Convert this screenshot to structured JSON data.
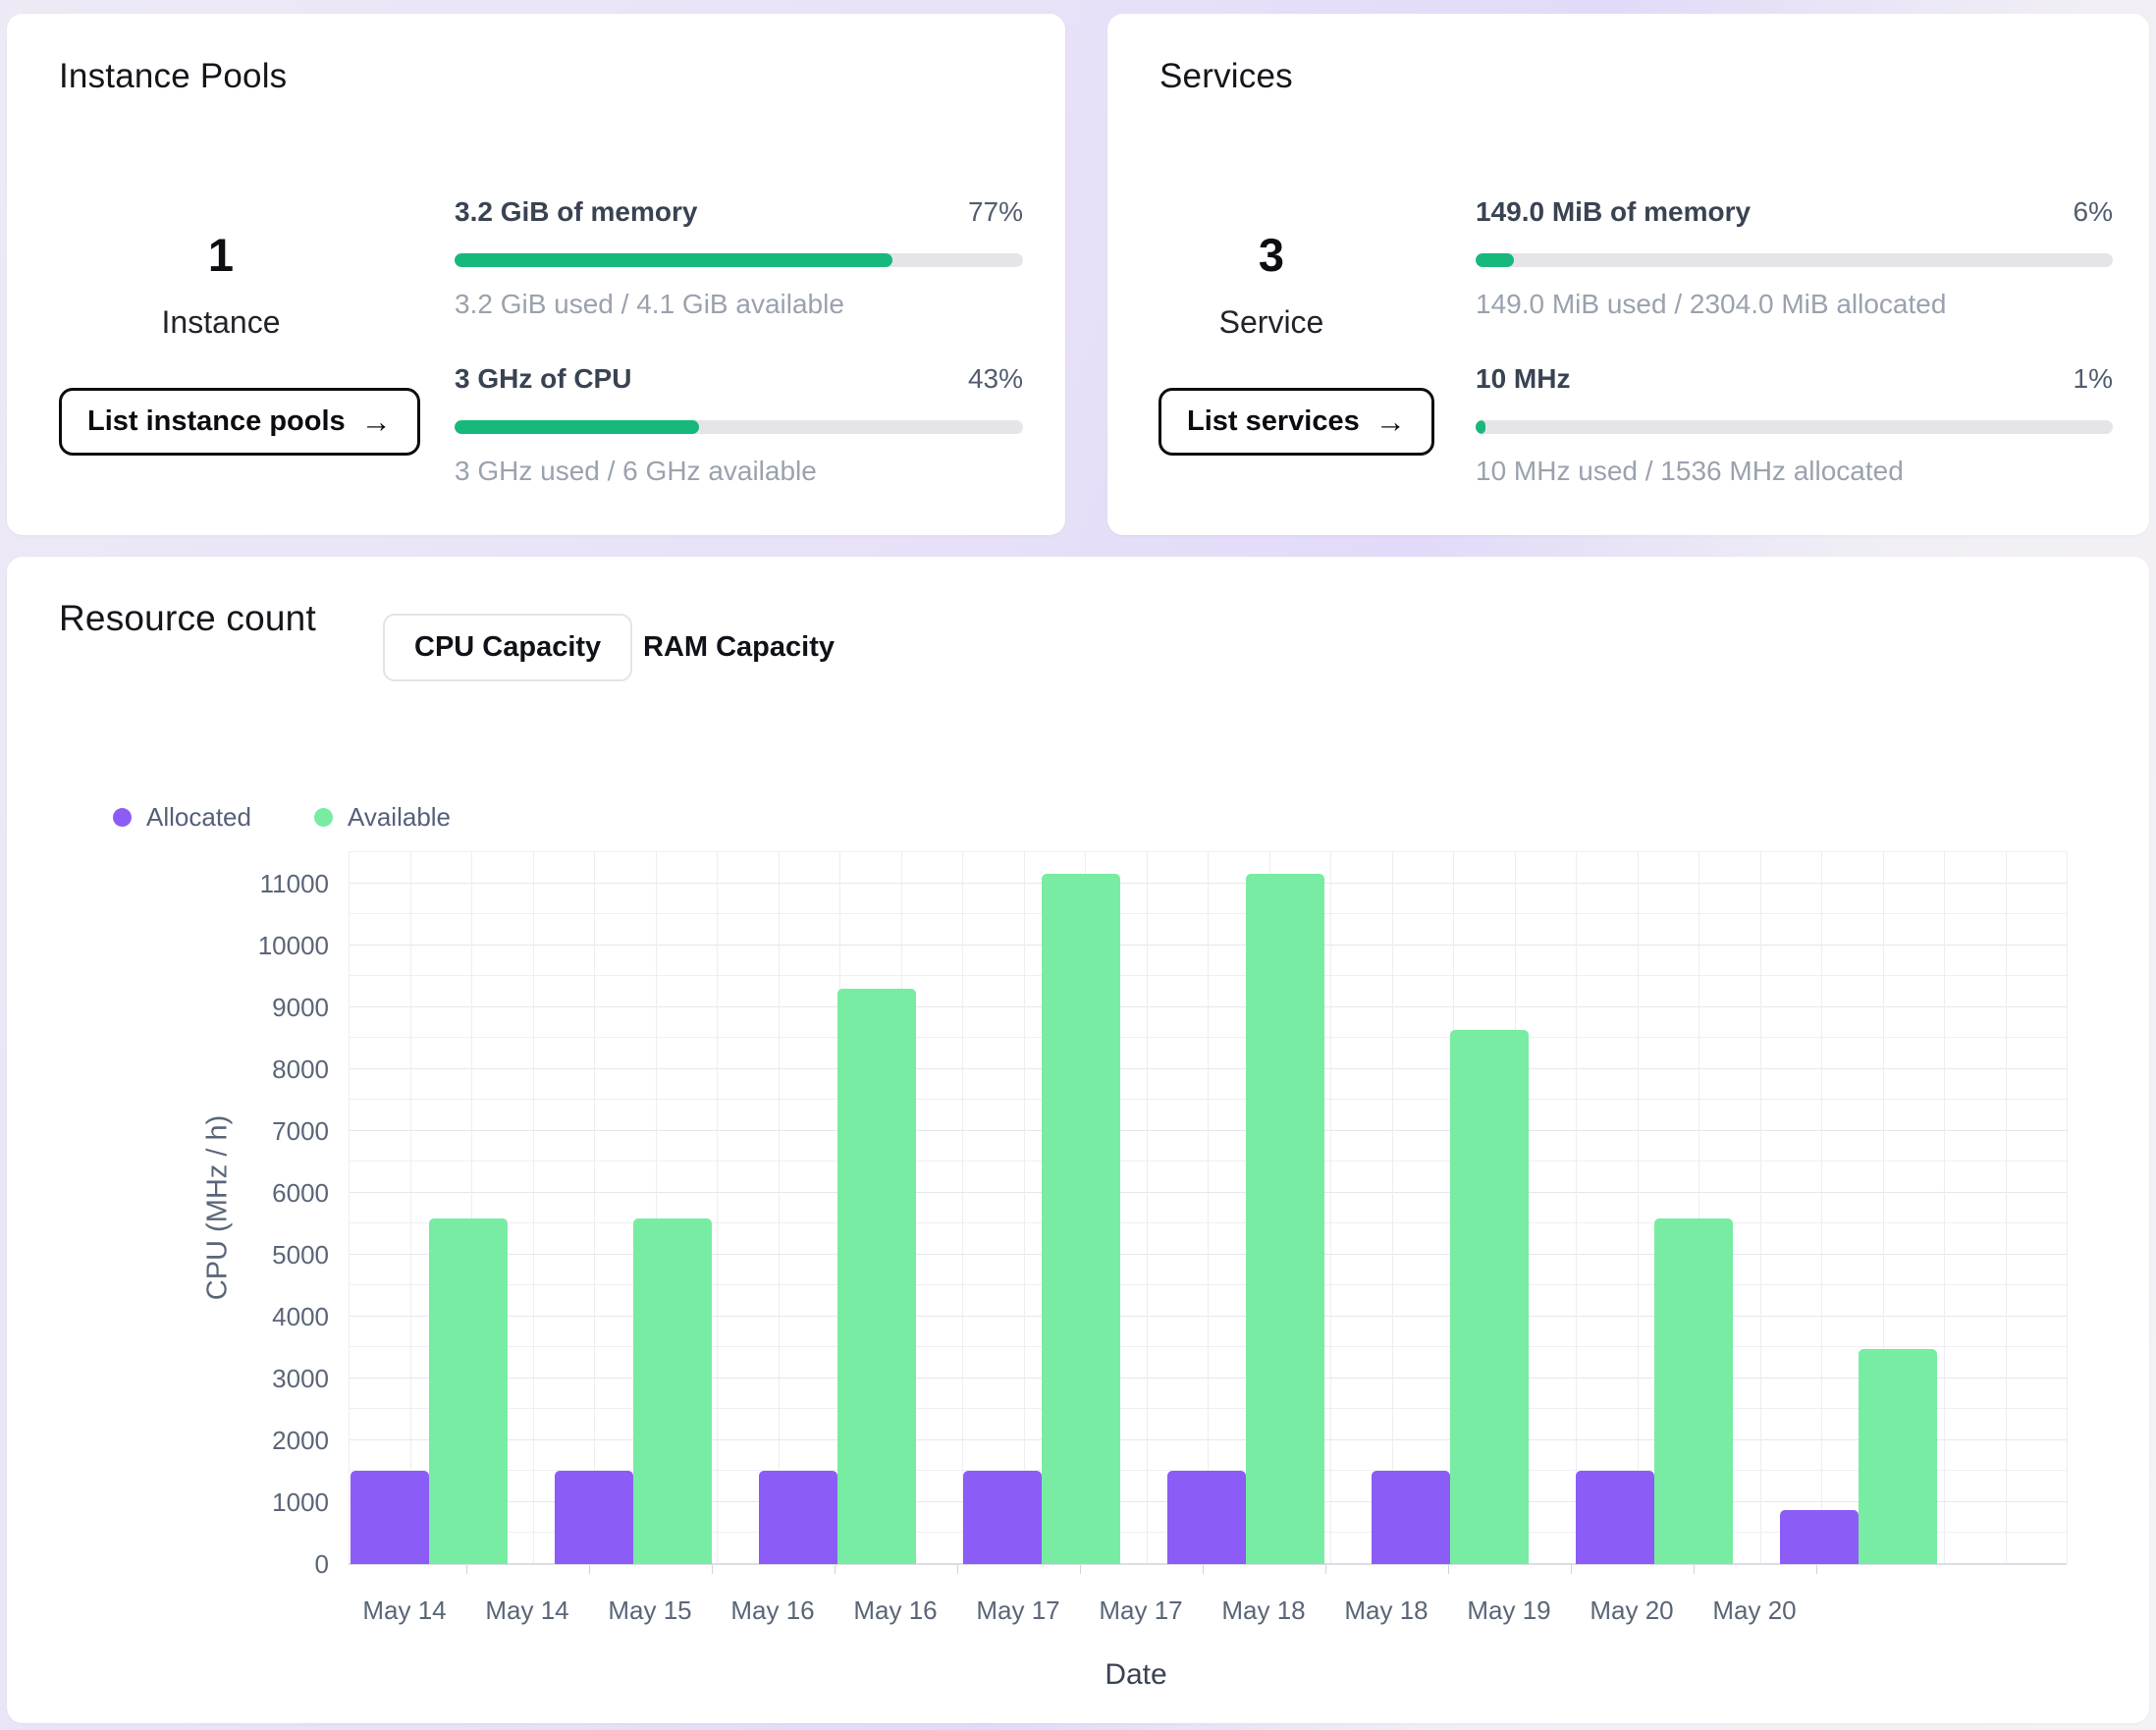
{
  "cards": {
    "instance_pools": {
      "title": "Instance Pools",
      "count": "1",
      "count_label": "Instance",
      "button_label": "List instance pools",
      "button_arrow": "→",
      "metrics": [
        {
          "label": "3.2 GiB of memory",
          "percent": "77%",
          "percent_value": 77,
          "detail": "3.2 GiB used / 4.1 GiB available"
        },
        {
          "label": "3 GHz of CPU",
          "percent": "43%",
          "percent_value": 43,
          "detail": "3 GHz used / 6 GHz available"
        }
      ]
    },
    "services": {
      "title": "Services",
      "count": "3",
      "count_label": "Service",
      "button_label": "List services",
      "button_arrow": "→",
      "metrics": [
        {
          "label": "149.0 MiB of memory",
          "percent": "6%",
          "percent_value": 6,
          "detail": "149.0 MiB used / 2304.0 MiB allocated"
        },
        {
          "label": "10 MHz",
          "percent": "1%",
          "percent_value": 1,
          "detail": "10 MHz used / 1536 MHz allocated"
        }
      ]
    }
  },
  "resource_section": {
    "title": "Resource count",
    "tabs": [
      {
        "label": "CPU Capacity",
        "selected": true
      },
      {
        "label": "RAM Capacity",
        "selected": false
      }
    ]
  },
  "colors": {
    "progress_green": "#17b87c",
    "allocated_purple": "#8c5cf6",
    "available_green": "#78eca2"
  },
  "chart_data": {
    "type": "bar",
    "title": "Resource count",
    "xlabel": "Date",
    "ylabel": "CPU (MHz / h)",
    "ylim": [
      0,
      11500
    ],
    "grid": true,
    "legend_position": "top-left",
    "yticks": [
      0,
      1000,
      2000,
      3000,
      4000,
      5000,
      6000,
      7000,
      8000,
      9000,
      10000,
      11000
    ],
    "x_tick_labels": [
      "May 14",
      "May 14",
      "May 15",
      "May 16",
      "May 16",
      "May 17",
      "May 17",
      "May 18",
      "May 18",
      "May 19",
      "May 20",
      "May 20"
    ],
    "legend": [
      {
        "name": "Allocated",
        "color": "#8c5cf6"
      },
      {
        "name": "Available",
        "color": "#78eca2"
      }
    ],
    "series": [
      {
        "name": "Allocated",
        "color": "#8c5cf6",
        "values": [
          1510,
          1510,
          1510,
          1510,
          1510,
          1510,
          1510,
          870
        ]
      },
      {
        "name": "Available",
        "color": "#78eca2",
        "values": [
          5580,
          5580,
          9300,
          11150,
          11150,
          8630,
          5580,
          3480
        ]
      }
    ]
  }
}
